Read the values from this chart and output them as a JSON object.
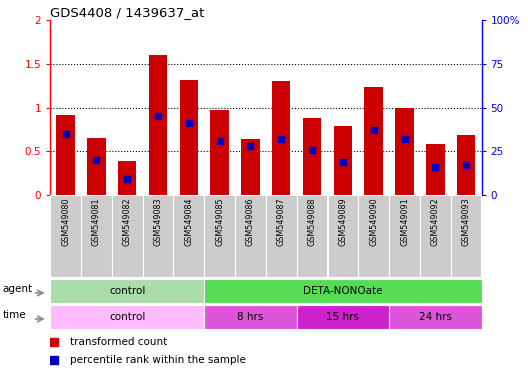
{
  "title": "GDS4408 / 1439637_at",
  "samples": [
    "GSM549080",
    "GSM549081",
    "GSM549082",
    "GSM549083",
    "GSM549084",
    "GSM549085",
    "GSM549086",
    "GSM549087",
    "GSM549088",
    "GSM549089",
    "GSM549090",
    "GSM549091",
    "GSM549092",
    "GSM549093"
  ],
  "transformed_count": [
    0.92,
    0.65,
    0.39,
    1.6,
    1.32,
    0.97,
    0.64,
    1.3,
    0.88,
    0.79,
    1.24,
    1.0,
    0.58,
    0.69
  ],
  "percentile_rank_pct": [
    35,
    20,
    9,
    45,
    41,
    31,
    28,
    32,
    26,
    19,
    37,
    32,
    16,
    17
  ],
  "bar_color": "#cc0000",
  "dot_color": "#0000bb",
  "ylim_left": [
    0,
    2
  ],
  "ylim_right": [
    0,
    100
  ],
  "yticks_left": [
    0,
    0.5,
    1.0,
    1.5,
    2.0
  ],
  "ytick_labels_left": [
    "0",
    "0.5",
    "1",
    "1.5",
    "2"
  ],
  "yticks_right": [
    0,
    25,
    50,
    75,
    100
  ],
  "ytick_labels_right": [
    "0",
    "25",
    "50",
    "75",
    "100%"
  ],
  "agent_row": [
    {
      "label": "control",
      "start": 0,
      "end": 5,
      "color": "#aaddaa"
    },
    {
      "label": "DETA-NONOate",
      "start": 5,
      "end": 14,
      "color": "#55dd55"
    }
  ],
  "time_row": [
    {
      "label": "control",
      "start": 0,
      "end": 5,
      "color": "#ffbbff"
    },
    {
      "label": "8 hrs",
      "start": 5,
      "end": 8,
      "color": "#dd55dd"
    },
    {
      "label": "15 hrs",
      "start": 8,
      "end": 11,
      "color": "#cc22cc"
    },
    {
      "label": "24 hrs",
      "start": 11,
      "end": 14,
      "color": "#dd55dd"
    }
  ],
  "legend_items": [
    {
      "label": "transformed count",
      "color": "#cc0000"
    },
    {
      "label": "percentile rank within the sample",
      "color": "#0000bb"
    }
  ],
  "xticklabel_bg": "#cccccc"
}
